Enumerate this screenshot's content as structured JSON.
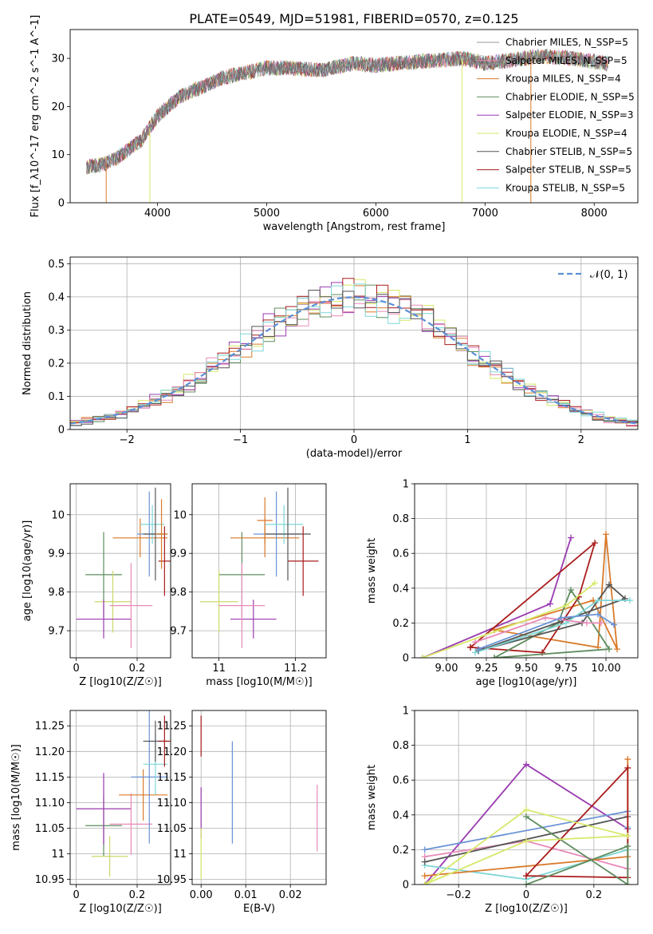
{
  "title": "PLATE=0549, MJD=51981, FIBERID=0570, z=0.125",
  "colors": [
    "#777777",
    "#999999",
    "#d97a2a",
    "#5e8c5e",
    "#9a3bb0",
    "#d8e86a",
    "#555555",
    "#aa1c1c",
    "#7fd6d6",
    "#e889b8",
    "#6a93d6",
    "#ccd86a"
  ],
  "chart_data": [
    {
      "type": "line",
      "id": "spectrum",
      "xlabel": "wavelength [Angstrom, rest frame]",
      "ylabel": "Flux [f_λ10^-17 erg cm^-2 s^-1 A^-1]",
      "xlim": [
        3200,
        8400
      ],
      "ylim": [
        0,
        36
      ],
      "xticks": [
        4000,
        5000,
        6000,
        7000,
        8000
      ],
      "yticks": [
        0,
        10,
        20,
        30
      ],
      "grid": false,
      "legend": "top-right",
      "continuum_x": [
        3350,
        3500,
        3600,
        3700,
        3850,
        4000,
        4200,
        4400,
        4600,
        4800,
        5000,
        5200,
        5500,
        5800,
        6000,
        6200,
        6500,
        6800,
        7000,
        7200,
        7500,
        7800,
        8100
      ],
      "continuum_y": [
        7.5,
        8,
        9,
        10.5,
        13,
        18,
        22,
        24,
        26,
        27,
        28,
        28,
        27.5,
        29,
        28.5,
        29,
        29.5,
        30,
        29,
        29.5,
        30.5,
        30,
        29
      ],
      "spikes_down": [
        {
          "x": 3530,
          "series": 2
        },
        {
          "x": 3930,
          "series": 5
        },
        {
          "x": 6790,
          "series": 5
        },
        {
          "x": 7420,
          "series": 2
        }
      ],
      "series": [
        {
          "name": "Chabrier MILES, N_SSP=5",
          "color_index": 1,
          "marker": "+"
        },
        {
          "name": "Salpeter MILES, N_SSP=5",
          "color_index": 9,
          "marker": ""
        },
        {
          "name": "Kroupa MILES, N_SSP=4",
          "color_index": 2,
          "marker": ""
        },
        {
          "name": "Chabrier ELODIE, N_SSP=5",
          "color_index": 3,
          "marker": ""
        },
        {
          "name": "Salpeter ELODIE, N_SSP=3",
          "color_index": 4,
          "marker": ""
        },
        {
          "name": "Kroupa ELODIE, N_SSP=4",
          "color_index": 5,
          "marker": ""
        },
        {
          "name": "Chabrier STELIB, N_SSP=5",
          "color_index": 6,
          "marker": ""
        },
        {
          "name": "Salpeter STELIB, N_SSP=5",
          "color_index": 7,
          "marker": ""
        },
        {
          "name": "Kroupa STELIB, N_SSP=5",
          "color_index": 8,
          "marker": ""
        }
      ]
    },
    {
      "type": "step",
      "id": "residuals",
      "xlabel": "(data-model)/error",
      "ylabel": "Normed distribution",
      "xlim": [
        -2.5,
        2.5
      ],
      "ylim": [
        0,
        0.52
      ],
      "xticks": [
        -2,
        -1,
        0,
        1,
        2
      ],
      "yticks": [
        0.0,
        0.1,
        0.2,
        0.3,
        0.4,
        0.5
      ],
      "grid": true,
      "legend": "top-right",
      "gaussian_label": "𝒩(0, 1)",
      "gaussian_color": "#5b8fd6"
    },
    {
      "type": "errorbar",
      "id": "age-vs-Z",
      "xlabel": "Z [log10(Z/Z☉)]",
      "ylabel": "age  [log10(age/yr)]",
      "xlim": [
        -0.02,
        0.31
      ],
      "ylim": [
        9.63,
        10.08
      ],
      "xticks": [
        0.0,
        0.2
      ],
      "yticks": [
        9.7,
        9.8,
        9.9,
        10.0
      ],
      "grid": true,
      "points": [
        {
          "x": 0.09,
          "y": 9.845,
          "xerr": 0.06,
          "yerr": 0.11,
          "color_index": 3
        },
        {
          "x": 0.12,
          "y": 9.775,
          "xerr": 0.06,
          "yerr": 0.08,
          "color_index": 11
        },
        {
          "x": 0.09,
          "y": 9.73,
          "xerr": 0.09,
          "yerr": 0.05,
          "color_index": 4
        },
        {
          "x": 0.18,
          "y": 9.765,
          "xerr": 0.07,
          "yerr": 0.11,
          "color_index": 9
        },
        {
          "x": 0.21,
          "y": 9.94,
          "xerr": 0.09,
          "yerr": 0.05,
          "color_index": 2
        },
        {
          "x": 0.24,
          "y": 9.95,
          "xerr": 0.04,
          "yerr": 0.11,
          "color_index": 10
        },
        {
          "x": 0.25,
          "y": 9.975,
          "xerr": 0.04,
          "yerr": 0.05,
          "color_index": 8
        },
        {
          "x": 0.26,
          "y": 9.95,
          "xerr": 0.04,
          "yerr": 0.12,
          "color_index": 6
        },
        {
          "x": 0.29,
          "y": 9.88,
          "xerr": 0.02,
          "yerr": 0.09,
          "color_index": 7
        },
        {
          "x": 0.28,
          "y": 9.95,
          "xerr": 0.02,
          "yerr": 0.09,
          "color_index": 2
        }
      ]
    },
    {
      "type": "errorbar",
      "id": "age-vs-mass",
      "xlabel": "mass [log10(M/M☉)]",
      "ylabel": "",
      "xlim": [
        10.93,
        11.28
      ],
      "ylim": [
        9.63,
        10.08
      ],
      "xticks": [
        11.0,
        11.2
      ],
      "yticks": [
        9.7,
        9.8,
        9.9,
        10.0
      ],
      "grid": true,
      "points": [
        {
          "x": 11.06,
          "y": 9.845,
          "xerr": 0.06,
          "yerr": 0.11,
          "color_index": 3
        },
        {
          "x": 11.0,
          "y": 9.775,
          "xerr": 0.05,
          "yerr": 0.08,
          "color_index": 11
        },
        {
          "x": 11.09,
          "y": 9.73,
          "xerr": 0.06,
          "yerr": 0.05,
          "color_index": 4
        },
        {
          "x": 11.06,
          "y": 9.765,
          "xerr": 0.06,
          "yerr": 0.11,
          "color_index": 9
        },
        {
          "x": 11.12,
          "y": 9.94,
          "xerr": 0.09,
          "yerr": 0.05,
          "color_index": 2
        },
        {
          "x": 11.15,
          "y": 9.95,
          "xerr": 0.06,
          "yerr": 0.11,
          "color_index": 10
        },
        {
          "x": 11.17,
          "y": 9.975,
          "xerr": 0.05,
          "yerr": 0.05,
          "color_index": 8
        },
        {
          "x": 11.18,
          "y": 9.95,
          "xerr": 0.06,
          "yerr": 0.12,
          "color_index": 6
        },
        {
          "x": 11.22,
          "y": 9.88,
          "xerr": 0.04,
          "yerr": 0.09,
          "color_index": 7
        },
        {
          "x": 11.12,
          "y": 9.985,
          "xerr": 0.02,
          "yerr": 0.06,
          "color_index": 2
        }
      ]
    },
    {
      "type": "line",
      "id": "weight-vs-age",
      "xlabel": "age  [log10(age/yr)]",
      "ylabel": "mass weight",
      "xlim": [
        8.8,
        10.2
      ],
      "ylim": [
        0.0,
        1.0
      ],
      "xticks": [
        9.0,
        9.25,
        9.5,
        9.75,
        10.0
      ],
      "xticklabels": [
        "9.00",
        "9.25",
        "9.50",
        "9.75",
        "10.00"
      ],
      "yticks": [
        0.0,
        0.2,
        0.4,
        0.6,
        0.8,
        1.0
      ],
      "grid": true,
      "series": [
        {
          "color_index": 4,
          "x": [
            8.85,
            9.65,
            9.78
          ],
          "y": [
            0.0,
            0.31,
            0.69
          ]
        },
        {
          "color_index": 2,
          "x": [
            9.3,
            9.95,
            10.0,
            10.07,
            9.92,
            9.3
          ],
          "y": [
            0.16,
            0.06,
            0.71,
            0.05,
            0.33,
            0.16
          ]
        },
        {
          "color_index": 7,
          "x": [
            9.15,
            9.6,
            9.83,
            9.93,
            9.15
          ],
          "y": [
            0.06,
            0.03,
            0.35,
            0.66,
            0.06
          ]
        },
        {
          "color_index": 3,
          "x": [
            9.3,
            9.7,
            9.78,
            10.02,
            9.3
          ],
          "y": [
            0.0,
            0.2,
            0.39,
            0.05,
            0.0
          ]
        },
        {
          "color_index": 6,
          "x": [
            9.2,
            9.85,
            10.02,
            10.12,
            9.2
          ],
          "y": [
            0.04,
            0.2,
            0.42,
            0.34,
            0.04
          ]
        },
        {
          "color_index": 8,
          "x": [
            9.18,
            9.75,
            9.95,
            10.15
          ],
          "y": [
            0.03,
            0.2,
            0.33,
            0.33
          ]
        },
        {
          "color_index": 9,
          "x": [
            9.18,
            9.62,
            9.88,
            9.97
          ],
          "y": [
            0.09,
            0.23,
            0.2,
            0.2
          ]
        },
        {
          "color_index": 10,
          "x": [
            9.2,
            9.72,
            9.95,
            10.05
          ],
          "y": [
            0.05,
            0.23,
            0.25,
            0.19
          ]
        },
        {
          "color_index": 5,
          "x": [
            8.85,
            9.75,
            9.93
          ],
          "y": [
            0.0,
            0.3,
            0.43
          ]
        }
      ]
    },
    {
      "type": "errorbar",
      "id": "mass-vs-Z",
      "xlabel": "Z [log10(Z/Z☉)]",
      "ylabel": "mass [log10(M/M☉)]",
      "xlim": [
        -0.02,
        0.31
      ],
      "ylim": [
        10.94,
        11.28
      ],
      "xticks": [
        0.0,
        0.2
      ],
      "yticks": [
        10.95,
        11.0,
        11.05,
        11.1,
        11.15,
        11.2,
        11.25
      ],
      "grid": true,
      "points": [
        {
          "x": 0.09,
          "y": 11.055,
          "xerr": 0.06,
          "yerr": 0.06,
          "color_index": 3
        },
        {
          "x": 0.11,
          "y": 10.995,
          "xerr": 0.06,
          "yerr": 0.04,
          "color_index": 11
        },
        {
          "x": 0.09,
          "y": 11.088,
          "xerr": 0.09,
          "yerr": 0.07,
          "color_index": 4
        },
        {
          "x": 0.18,
          "y": 11.058,
          "xerr": 0.07,
          "yerr": 0.06,
          "color_index": 9
        },
        {
          "x": 0.22,
          "y": 11.115,
          "xerr": 0.08,
          "yerr": 0.05,
          "color_index": 2
        },
        {
          "x": 0.24,
          "y": 11.15,
          "xerr": 0.06,
          "yerr": 0.13,
          "color_index": 10
        },
        {
          "x": 0.26,
          "y": 11.175,
          "xerr": 0.04,
          "yerr": 0.06,
          "color_index": 8
        },
        {
          "x": 0.26,
          "y": 11.22,
          "xerr": 0.04,
          "yerr": 0.04,
          "color_index": 6
        },
        {
          "x": 0.29,
          "y": 11.22,
          "xerr": 0.02,
          "yerr": 0.05,
          "color_index": 7
        }
      ]
    },
    {
      "type": "errorbar",
      "id": "mass-vs-ebv",
      "xlabel": "E(B-V)",
      "ylabel": "",
      "xlim": [
        -0.002,
        0.028
      ],
      "ylim": [
        10.94,
        11.28
      ],
      "xticks": [
        0.0,
        0.01,
        0.02
      ],
      "xticklabels": [
        "0.00",
        "0.01",
        "0.02"
      ],
      "yticks": [
        10.95,
        11.0,
        11.05,
        11.1,
        11.15,
        11.2,
        11.25
      ],
      "grid": true,
      "points": [
        {
          "x": 0.0,
          "y": 11.23,
          "xerr": 0.0,
          "yerr": 0.04,
          "color_index": 7
        },
        {
          "x": 0.0,
          "y": 11.08,
          "xerr": 0.0,
          "yerr": 0.05,
          "color_index": 4
        },
        {
          "x": 0.0,
          "y": 11.0,
          "xerr": 0.0,
          "yerr": 0.05,
          "color_index": 5
        },
        {
          "x": 0.007,
          "y": 11.12,
          "xerr": 0.0,
          "yerr": 0.1,
          "color_index": 10
        },
        {
          "x": 0.026,
          "y": 11.07,
          "xerr": 0.0,
          "yerr": 0.065,
          "color_index": 9
        }
      ]
    },
    {
      "type": "line",
      "id": "weight-vs-Z",
      "xlabel": "Z [log10(Z/Z☉)]",
      "ylabel": "mass weight",
      "xlim": [
        -0.33,
        0.33
      ],
      "ylim": [
        0.0,
        1.0
      ],
      "xticks": [
        -0.2,
        0.0,
        0.2
      ],
      "yticks": [
        0.0,
        0.2,
        0.4,
        0.6,
        0.8,
        1.0
      ],
      "grid": true,
      "series": [
        {
          "color_index": 4,
          "x": [
            -0.3,
            0.0,
            0.3
          ],
          "y": [
            0.0,
            0.69,
            0.32
          ]
        },
        {
          "color_index": 10,
          "x": [
            -0.3,
            0.3
          ],
          "y": [
            0.2,
            0.42
          ]
        },
        {
          "color_index": 9,
          "x": [
            -0.3,
            0.0,
            0.3
          ],
          "y": [
            0.16,
            0.25,
            0.09
          ]
        },
        {
          "color_index": 8,
          "x": [
            -0.3,
            0.0,
            0.3,
            0.3
          ],
          "y": [
            0.11,
            0.03,
            0.2,
            0.33
          ]
        },
        {
          "color_index": 2,
          "x": [
            -0.3,
            0.3,
            0.3
          ],
          "y": [
            0.05,
            0.16,
            0.72
          ]
        },
        {
          "color_index": 6,
          "x": [
            -0.3,
            0.3
          ],
          "y": [
            0.13,
            0.39
          ]
        },
        {
          "color_index": 7,
          "x": [
            0.0,
            0.3,
            0.3,
            0.0
          ],
          "y": [
            0.05,
            0.67,
            0.04,
            0.05
          ]
        },
        {
          "color_index": 3,
          "x": [
            0.0,
            0.3,
            0.3,
            0.0
          ],
          "y": [
            0.0,
            0.22,
            0.0,
            0.39
          ]
        },
        {
          "color_index": 5,
          "x": [
            -0.3,
            0.0,
            0.3,
            0.0,
            -0.3
          ],
          "y": [
            0.0,
            0.43,
            0.28,
            0.25,
            0.0
          ]
        }
      ]
    }
  ]
}
